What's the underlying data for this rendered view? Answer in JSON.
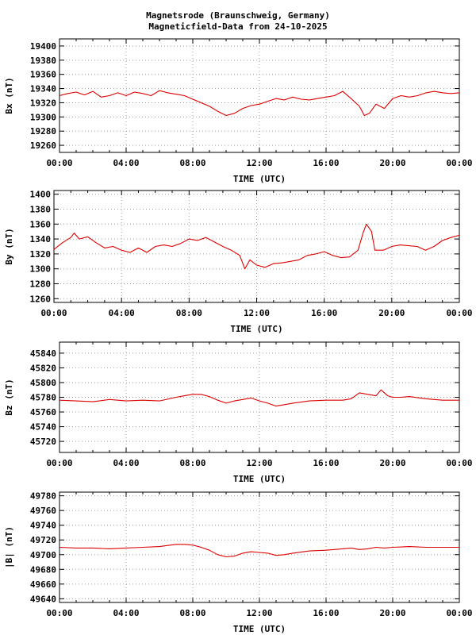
{
  "header": {
    "title_line1": "Magnetsrode (Braunschweig, Germany)",
    "title_line2": "Magneticfield-Data from 24-10-2025"
  },
  "colors": {
    "trace": "#dd0000",
    "grid": "#a0a0a0",
    "axis": "#000000"
  },
  "chart_data": [
    {
      "type": "line",
      "ylabel": "Bx (nT)",
      "xlabel": "TIME (UTC)",
      "xticks": [
        "00:00",
        "04:00",
        "08:00",
        "12:00",
        "16:00",
        "20:00",
        "00:00"
      ],
      "ylim": [
        19250,
        19410
      ],
      "yticks": [
        19260,
        19280,
        19300,
        19320,
        19340,
        19360,
        19380,
        19400
      ],
      "x": [
        0,
        0.5,
        1,
        1.5,
        2,
        2.5,
        3,
        3.5,
        4,
        4.5,
        5,
        5.5,
        6,
        6.5,
        7,
        7.5,
        8,
        8.5,
        9,
        9.5,
        10,
        10.5,
        11,
        11.5,
        12,
        12.5,
        13,
        13.5,
        14,
        14.5,
        15,
        15.5,
        16,
        16.5,
        17,
        17.5,
        18,
        18.3,
        18.6,
        19,
        19.5,
        20,
        20.5,
        21,
        21.5,
        22,
        22.5,
        23,
        23.5,
        24
      ],
      "y": [
        19330,
        19333,
        19335,
        19331,
        19336,
        19328,
        19330,
        19334,
        19330,
        19335,
        19333,
        19330,
        19337,
        19334,
        19332,
        19330,
        19325,
        19320,
        19315,
        19308,
        19302,
        19305,
        19312,
        19316,
        19318,
        19322,
        19326,
        19324,
        19328,
        19325,
        19324,
        19326,
        19328,
        19330,
        19336,
        19326,
        19315,
        19302,
        19305,
        19318,
        19312,
        19326,
        19330,
        19328,
        19330,
        19334,
        19336,
        19334,
        19333,
        19334
      ]
    },
    {
      "type": "line",
      "ylabel": "By (nT)",
      "xlabel": "TIME (UTC)",
      "xticks": [
        "00:00",
        "04:00",
        "08:00",
        "12:00",
        "16:00",
        "20:00",
        "00:00"
      ],
      "ylim": [
        1255,
        1405
      ],
      "yticks": [
        1260,
        1280,
        1300,
        1320,
        1340,
        1360,
        1380,
        1400
      ],
      "x": [
        0,
        0.5,
        1,
        1.2,
        1.5,
        2,
        2.5,
        3,
        3.5,
        4,
        4.5,
        5,
        5.5,
        6,
        6.5,
        7,
        7.5,
        8,
        8.5,
        9,
        9.5,
        10,
        10.5,
        11,
        11.3,
        11.6,
        12,
        12.5,
        13,
        13.5,
        14,
        14.5,
        15,
        15.5,
        16,
        16.5,
        17,
        17.5,
        18,
        18.3,
        18.5,
        18.8,
        19,
        19.5,
        20,
        20.5,
        21,
        21.5,
        22,
        22.5,
        23,
        23.5,
        24
      ],
      "y": [
        1326,
        1335,
        1342,
        1348,
        1340,
        1343,
        1335,
        1328,
        1330,
        1325,
        1322,
        1328,
        1322,
        1330,
        1332,
        1330,
        1334,
        1340,
        1338,
        1342,
        1336,
        1330,
        1325,
        1318,
        1300,
        1312,
        1305,
        1302,
        1307,
        1308,
        1310,
        1312,
        1318,
        1320,
        1323,
        1318,
        1315,
        1316,
        1325,
        1348,
        1360,
        1350,
        1325,
        1325,
        1330,
        1332,
        1331,
        1330,
        1325,
        1330,
        1338,
        1342,
        1345
      ]
    },
    {
      "type": "line",
      "ylabel": "Bz (nT)",
      "xlabel": "TIME (UTC)",
      "xticks": [
        "00:00",
        "04:00",
        "08:00",
        "12:00",
        "16:00",
        "20:00",
        "00:00"
      ],
      "ylim": [
        45705,
        45855
      ],
      "yticks": [
        45720,
        45740,
        45760,
        45780,
        45800,
        45820,
        45840
      ],
      "x": [
        0,
        1,
        2,
        3,
        4,
        5,
        6,
        7,
        7.5,
        8,
        8.5,
        9,
        9.5,
        10,
        10.5,
        11,
        11.5,
        12,
        12.5,
        13,
        13.5,
        14,
        15,
        16,
        17,
        17.5,
        18,
        18.5,
        19,
        19.3,
        19.7,
        20,
        20.5,
        21,
        22,
        23,
        24
      ],
      "y": [
        45776,
        45775,
        45774,
        45777,
        45775,
        45776,
        45775,
        45780,
        45782,
        45784,
        45784,
        45781,
        45776,
        45772,
        45775,
        45777,
        45779,
        45775,
        45772,
        45768,
        45770,
        45772,
        45775,
        45776,
        45776,
        45778,
        45786,
        45784,
        45782,
        45790,
        45782,
        45780,
        45780,
        45781,
        45778,
        45776,
        45776
      ]
    },
    {
      "type": "line",
      "ylabel": "|B| (nT)",
      "xlabel": "TIME (UTC)",
      "xticks": [
        "00:00",
        "04:00",
        "08:00",
        "12:00",
        "16:00",
        "20:00",
        "00:00"
      ],
      "ylim": [
        49635,
        49785
      ],
      "yticks": [
        49640,
        49660,
        49680,
        49700,
        49720,
        49740,
        49760,
        49780
      ],
      "x": [
        0,
        1,
        2,
        3,
        4,
        5,
        6,
        7,
        7.5,
        8,
        8.5,
        9,
        9.5,
        10,
        10.5,
        11,
        11.5,
        12,
        12.5,
        13,
        13.5,
        14,
        15,
        16,
        17,
        17.5,
        18,
        18.5,
        19,
        19.5,
        20,
        21,
        22,
        23,
        24
      ],
      "y": [
        49710,
        49709,
        49709,
        49708,
        49709,
        49710,
        49711,
        49714,
        49714,
        49713,
        49710,
        49706,
        49700,
        49697,
        49698,
        49702,
        49704,
        49703,
        49702,
        49699,
        49700,
        49702,
        49705,
        49706,
        49708,
        49709,
        49707,
        49708,
        49710,
        49709,
        49710,
        49711,
        49710,
        49710,
        49710
      ]
    }
  ]
}
